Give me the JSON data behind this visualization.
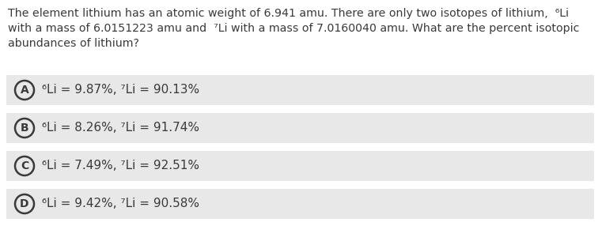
{
  "background_color": "#ffffff",
  "answer_box_color": "#e8e8e8",
  "question_lines": [
    "The element lithium has an atomic weight of 6.941 amu. There are only two isotopes of lithium,  ⁶Li",
    "with a mass of 6.0151223 amu and  ⁷Li with a mass of 7.0160040 amu. What are the percent isotopic",
    "abundances of lithium?"
  ],
  "answers": [
    {
      "label": "A",
      "text": "⁶Li = 9.87%, ⁷Li = 90.13%"
    },
    {
      "label": "B",
      "text": "⁶Li = 8.26%, ⁷Li = 91.74%"
    },
    {
      "label": "C",
      "text": "⁶Li = 7.49%, ⁷Li = 92.51%"
    },
    {
      "label": "D",
      "text": "⁶Li = 9.42%, ⁷Li = 90.58%"
    }
  ],
  "text_color": "#3a3a3a",
  "circle_edge_color": "#3a3a3a",
  "font_size_question": 10.2,
  "font_size_answer": 11.0,
  "font_family": "DejaVu Sans",
  "fig_width": 7.61,
  "fig_height": 3.1,
  "dpi": 100
}
